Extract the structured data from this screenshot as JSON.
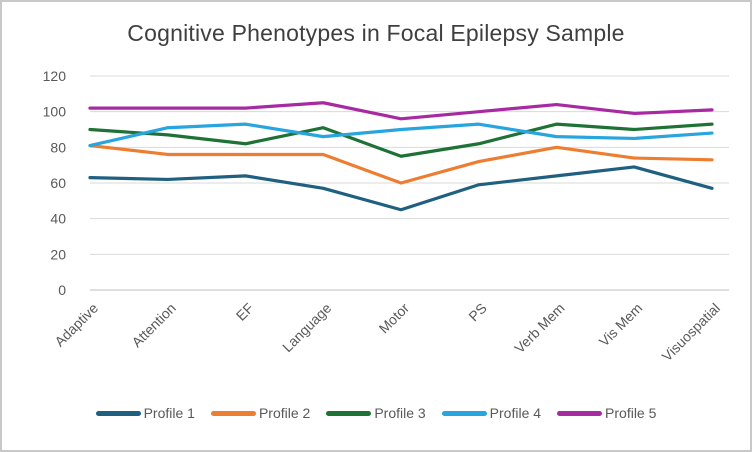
{
  "window": {
    "background": "#ffffff",
    "border_color": "#c8c8c8"
  },
  "chart_data": {
    "type": "line",
    "title": "Cognitive Phenotypes in Focal Epilepsy Sample",
    "categories": [
      "Adaptive",
      "Attention",
      "EF",
      "Language",
      "Motor",
      "PS",
      "Verb Mem",
      "Vis Mem",
      "Visuospatial"
    ],
    "series": [
      {
        "name": "Profile 1",
        "color": "#1F5F7F",
        "values": [
          63,
          62,
          64,
          57,
          45,
          59,
          64,
          69,
          57
        ]
      },
      {
        "name": "Profile 2",
        "color": "#ED7D31",
        "values": [
          81,
          76,
          76,
          76,
          60,
          72,
          80,
          74,
          73
        ]
      },
      {
        "name": "Profile 3",
        "color": "#1E7235",
        "values": [
          90,
          87,
          82,
          91,
          75,
          82,
          93,
          90,
          93
        ]
      },
      {
        "name": "Profile 4",
        "color": "#28A4DE",
        "values": [
          81,
          91,
          93,
          86,
          90,
          93,
          86,
          85,
          88
        ]
      },
      {
        "name": "Profile 5",
        "color": "#A82AA2",
        "values": [
          102,
          102,
          102,
          105,
          96,
          100,
          104,
          99,
          101
        ]
      }
    ],
    "ylim": [
      0,
      120
    ],
    "yticks": [
      0,
      20,
      40,
      60,
      80,
      100,
      120
    ],
    "grid": true,
    "legend_position": "bottom",
    "gridline_color": "#D9D9D9",
    "axis_line_color": "#BFBFBF",
    "axis_text_color": "#595959",
    "title_color": "#3F3F3F",
    "x_label_rotation_deg": -45
  }
}
